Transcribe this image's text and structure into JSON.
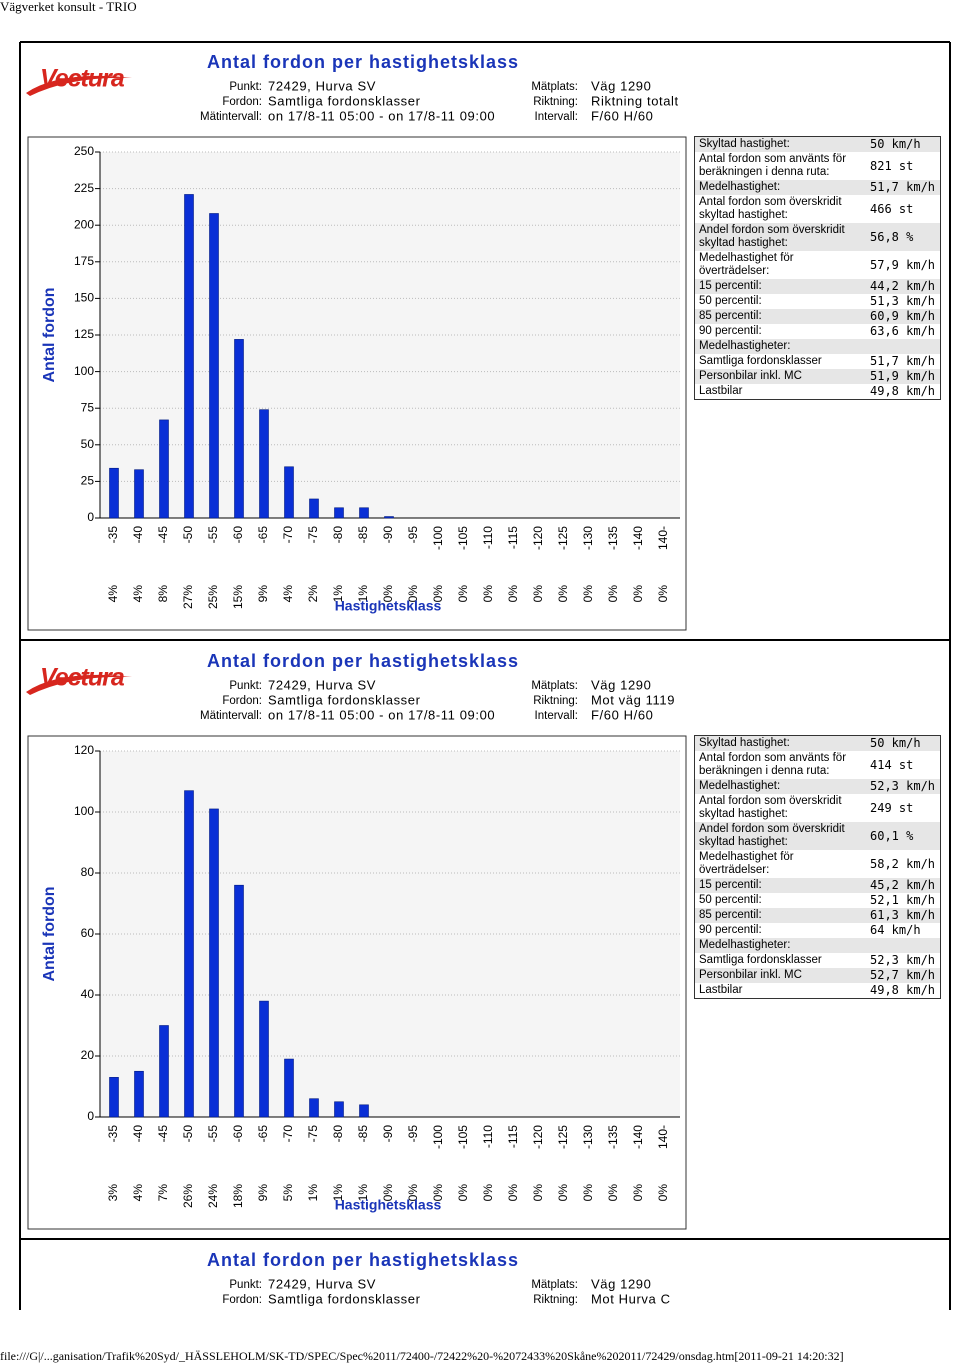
{
  "page_title": "Vägverket konsult - TRIO",
  "footer": "file:///G|/...ganisation/Trafik%20Syd/_HÄSSLEHOLM/SK-TD/SPEC/Spec%2011/72400-/72422%20-%2072433%20Skåne%202011/72429/onsdag.htm[2011-09-21 14:20:32]",
  "reports": [
    {
      "logo": "Vectura",
      "title": "Antal fordon per hastighetsklass",
      "info_left": [
        {
          "label": "Punkt:",
          "value": "72429, Hurva SV"
        },
        {
          "label": "Fordon:",
          "value": "Samtliga fordonsklasser"
        },
        {
          "label": "Mätintervall:",
          "value": "on 17/8-11 05:00 - on 17/8-11 09:00"
        }
      ],
      "info_right": [
        {
          "label": "Mätplats:",
          "value": "Väg 1290"
        },
        {
          "label": "Riktning:",
          "value": "Riktning totalt"
        },
        {
          "label": "Intervall:",
          "value": "F/60 H/60"
        }
      ],
      "stats": [
        {
          "label": "Skyltad hastighet:",
          "value": "50 km/h"
        },
        {
          "label": "Antal fordon som använts för beräkningen i denna ruta:",
          "value": "821 st"
        },
        {
          "label": "Medelhastighet:",
          "value": "51,7 km/h"
        },
        {
          "label": "Antal fordon som överskridit skyltad hastighet:",
          "value": "466 st"
        },
        {
          "label": "Andel fordon som överskridit skyltad hastighet:",
          "value": "56,8 %"
        },
        {
          "label": "Medelhastighet för överträdelser:",
          "value": "57,9 km/h"
        },
        {
          "label": "15 percentil:",
          "value": "44,2 km/h"
        },
        {
          "label": "50 percentil:",
          "value": "51,3 km/h"
        },
        {
          "label": "85 percentil:",
          "value": "60,9 km/h"
        },
        {
          "label": "90 percentil:",
          "value": "63,6 km/h"
        },
        {
          "label": "Medelhastigheter:"
        },
        {
          "label": "Samtliga fordonsklasser",
          "value": "51,7 km/h"
        },
        {
          "label": "Personbilar inkl. MC",
          "value": "51,9 km/h"
        },
        {
          "label": "Lastbilar",
          "value": "49,8 km/h"
        }
      ]
    },
    {
      "logo": "Vectura",
      "title": "Antal fordon per hastighetsklass",
      "info_left": [
        {
          "label": "Punkt:",
          "value": "72429, Hurva SV"
        },
        {
          "label": "Fordon:",
          "value": "Samtliga fordonsklasser"
        },
        {
          "label": "Mätintervall:",
          "value": "on 17/8-11 05:00 - on 17/8-11 09:00"
        }
      ],
      "info_right": [
        {
          "label": "Mätplats:",
          "value": "Väg 1290"
        },
        {
          "label": "Riktning:",
          "value": "Mot väg 1119"
        },
        {
          "label": "Intervall:",
          "value": "F/60 H/60"
        }
      ],
      "stats": [
        {
          "label": "Skyltad hastighet:",
          "value": "50 km/h"
        },
        {
          "label": "Antal fordon som använts för beräkningen i denna ruta:",
          "value": "414 st"
        },
        {
          "label": "Medelhastighet:",
          "value": "52,3 km/h"
        },
        {
          "label": "Antal fordon som överskridit skyltad hastighet:",
          "value": "249 st"
        },
        {
          "label": "Andel fordon som överskridit skyltad hastighet:",
          "value": "60,1 %"
        },
        {
          "label": "Medelhastighet för överträdelser:",
          "value": "58,2 km/h"
        },
        {
          "label": "15 percentil:",
          "value": "45,2 km/h"
        },
        {
          "label": "50 percentil:",
          "value": "52,1 km/h"
        },
        {
          "label": "85 percentil:",
          "value": "61,3 km/h"
        },
        {
          "label": "90 percentil:",
          "value": "64 km/h"
        },
        {
          "label": "Medelhastigheter:"
        },
        {
          "label": "Samtliga fordonsklasser",
          "value": "52,3 km/h"
        },
        {
          "label": "Personbilar inkl. MC",
          "value": "52,7 km/h"
        },
        {
          "label": "Lastbilar",
          "value": "49,8 km/h"
        }
      ]
    },
    {
      "title": "Antal fordon per hastighetsklass",
      "info_left": [
        {
          "label": "Punkt:",
          "value": "72429, Hurva SV"
        },
        {
          "label": "Fordon:",
          "value": "Samtliga fordonsklasser"
        }
      ],
      "info_right": [
        {
          "label": "Mätplats:",
          "value": "Väg 1290"
        },
        {
          "label": "Riktning:",
          "value": "Mot Hurva C"
        }
      ]
    }
  ],
  "chart_data": [
    {
      "type": "bar",
      "y_label": "Antal fordon",
      "x_label": "Hastighetsklass",
      "color": "#0a2fd6",
      "grid": true,
      "categories": [
        "-35",
        "-40",
        "-45",
        "-50",
        "-55",
        "-60",
        "-65",
        "-70",
        "-75",
        "-80",
        "-85",
        "-90",
        "-95",
        "-100",
        "-105",
        "-110",
        "-115",
        "-120",
        "-125",
        "-130",
        "-135",
        "-140",
        "140-"
      ],
      "values": [
        34,
        33,
        67,
        221,
        208,
        122,
        74,
        35,
        13,
        7,
        7,
        1,
        0,
        0,
        0,
        0,
        0,
        0,
        0,
        0,
        0,
        0,
        0
      ],
      "percent_labels": [
        "4%",
        "4%",
        "8%",
        "27%",
        "25%",
        "15%",
        "9%",
        "4%",
        "2%",
        "1%",
        "1%",
        "0%",
        "0%",
        "0%",
        "0%",
        "0%",
        "0%",
        "0%",
        "0%",
        "0%",
        "0%",
        "0%",
        "0%"
      ],
      "ylim": [
        0,
        250
      ],
      "yticks": [
        0,
        25,
        50,
        75,
        100,
        125,
        150,
        175,
        200,
        225,
        250
      ]
    },
    {
      "type": "bar",
      "y_label": "Antal fordon",
      "x_label": "Hastighetsklass",
      "color": "#0a2fd6",
      "grid": true,
      "categories": [
        "-35",
        "-40",
        "-45",
        "-50",
        "-55",
        "-60",
        "-65",
        "-70",
        "-75",
        "-80",
        "-85",
        "-90",
        "-95",
        "-100",
        "-105",
        "-110",
        "-115",
        "-120",
        "-125",
        "-130",
        "-135",
        "-140",
        "140-"
      ],
      "values": [
        13,
        15,
        30,
        107,
        101,
        76,
        38,
        19,
        6,
        5,
        4,
        0,
        0,
        0,
        0,
        0,
        0,
        0,
        0,
        0,
        0,
        0,
        0
      ],
      "percent_labels": [
        "3%",
        "4%",
        "7%",
        "26%",
        "24%",
        "18%",
        "9%",
        "5%",
        "1%",
        "1%",
        "1%",
        "0%",
        "0%",
        "0%",
        "0%",
        "0%",
        "0%",
        "0%",
        "0%",
        "0%",
        "0%",
        "0%",
        "0%"
      ],
      "ylim": [
        0,
        120
      ],
      "yticks": [
        0,
        20,
        40,
        60,
        80,
        100,
        120
      ]
    }
  ]
}
